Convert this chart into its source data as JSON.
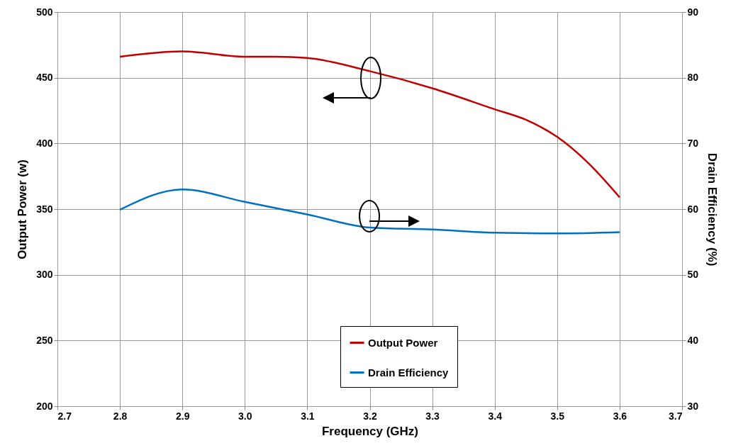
{
  "chart_data": {
    "type": "line",
    "xlabel": "Frequency (GHz)",
    "ylabel": "Output Power (w)",
    "y2label": "Drain Efficiency (%)",
    "x": [
      2.8,
      2.9,
      3.0,
      3.05,
      3.1,
      3.2,
      3.3,
      3.4,
      3.45,
      3.5,
      3.55,
      3.6
    ],
    "series": [
      {
        "name": "Output Power",
        "color": "#c00000",
        "values": [
          466,
          470,
          466,
          466,
          465,
          455,
          442,
          426,
          418,
          405,
          385,
          359
        ]
      },
      {
        "name": "Drain Efficiency",
        "color": "#0070c0",
        "axis": "y2",
        "x": [
          2.8,
          2.9,
          3.0,
          3.1,
          3.2,
          3.3,
          3.4,
          3.5,
          3.6
        ],
        "values": [
          59.9,
          63.0,
          61.1,
          59.2,
          57.2,
          56.9,
          56.4,
          56.3,
          56.5
        ]
      }
    ],
    "xlim": [
      2.7,
      3.7
    ],
    "xticks": [
      2.7,
      2.8,
      2.9,
      {
        "value": 3,
        "label": "3.0"
      },
      3.1,
      3.2,
      3.3,
      3.4,
      3.5,
      3.6,
      3.7
    ],
    "ylim": [
      200,
      500
    ],
    "yticks": [
      200,
      250,
      300,
      350,
      400,
      450,
      500
    ],
    "y2lim": [
      30,
      90
    ],
    "y2ticks": [
      30,
      40,
      50,
      60,
      70,
      80,
      90
    ],
    "grid": true,
    "legend": "bottom",
    "marker": "none",
    "line_style": "solid"
  }
}
